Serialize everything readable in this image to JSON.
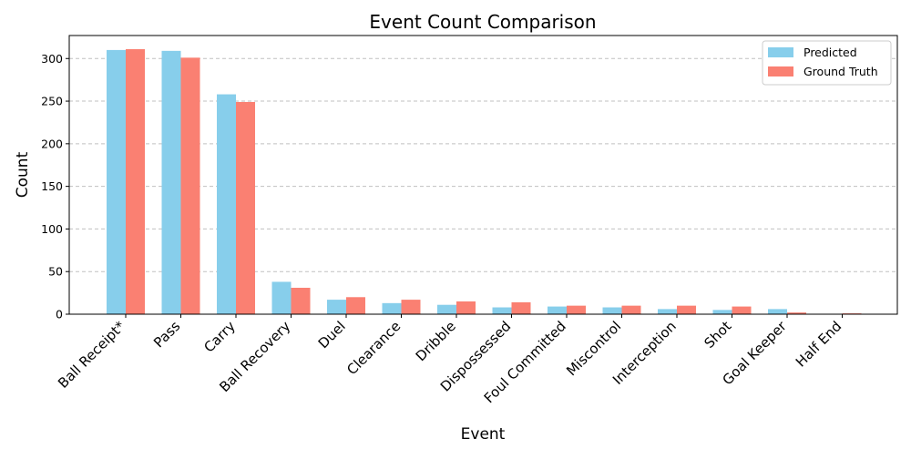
{
  "chart_data": {
    "type": "bar",
    "title": "Event Count Comparison",
    "xlabel": "Event",
    "ylabel": "Count",
    "ylim": [
      0,
      327
    ],
    "yticks": [
      0,
      50,
      100,
      150,
      200,
      250,
      300
    ],
    "grid": "y-dashed",
    "legend_position": "top-right",
    "categories": [
      "Ball Receipt*",
      "Pass",
      "Carry",
      "Ball Recovery",
      "Duel",
      "Clearance",
      "Dribble",
      "Dispossessed",
      "Foul Committed",
      "Miscontrol",
      "Interception",
      "Shot",
      "Goal Keeper",
      "Half End"
    ],
    "series": [
      {
        "name": "Predicted",
        "color": "#87ceeb",
        "values": [
          310,
          309,
          258,
          38,
          17,
          13,
          11,
          8,
          9,
          8,
          6,
          5,
          6,
          0
        ]
      },
      {
        "name": "Ground Truth",
        "color": "#fa8072",
        "values": [
          311,
          301,
          249,
          31,
          20,
          17,
          15,
          14,
          10,
          10,
          10,
          9,
          2,
          1
        ]
      }
    ]
  }
}
